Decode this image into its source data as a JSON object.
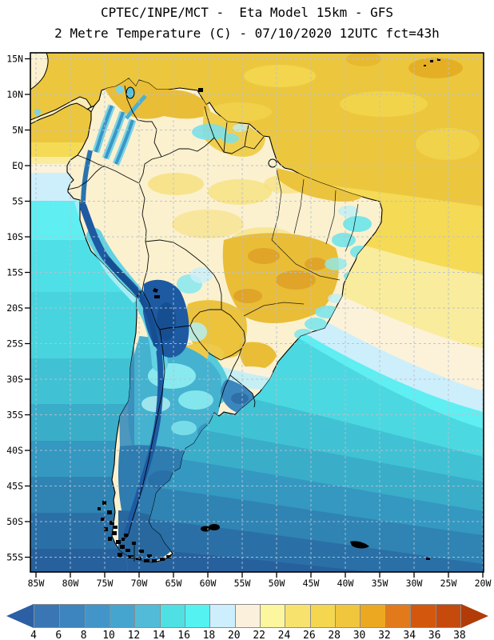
{
  "title": {
    "line1": "CPTEC/INPE/MCT -  Eta Model 15km - GFS",
    "line2": "2 Metre Temperature (C) - 07/10/2020 12UTC fct=43h"
  },
  "axes": {
    "lat_labels": [
      "15N",
      "10N",
      "5N",
      "EQ",
      "5S",
      "10S",
      "15S",
      "20S",
      "25S",
      "30S",
      "35S",
      "40S",
      "45S",
      "50S",
      "55S"
    ],
    "lon_labels": [
      "85W",
      "80W",
      "75W",
      "70W",
      "65W",
      "60W",
      "55W",
      "50W",
      "45W",
      "40W",
      "35W",
      "30W",
      "25W",
      "20W"
    ]
  },
  "colorbar": {
    "tick_labels": [
      "4",
      "6",
      "8",
      "10",
      "12",
      "14",
      "16",
      "18",
      "20",
      "22",
      "24",
      "26",
      "28",
      "30",
      "32",
      "34",
      "36",
      "38"
    ],
    "cell_colors": [
      "#3a76b4",
      "#3c85be",
      "#4295c8",
      "#46a5cf",
      "#52bcd8",
      "#4fe0e4",
      "#55f2f2",
      "#cdeefc",
      "#fbf0dc",
      "#fcf69e",
      "#f7e26e",
      "#f4d74f",
      "#f0c63d",
      "#eda821",
      "#e2791b",
      "#d3570d",
      "#c64a0b"
    ],
    "left_arrow_color": "#2d5fa4",
    "right_arrow_color": "#b13c08"
  },
  "map": {
    "palette": {
      "ocean_tropical_gold": "#ecc73e",
      "ocean_warm_yellow": "#f5da55",
      "ocean_pale_yellow": "#f9ec9c",
      "ocean_cream": "#fcf2da",
      "ocean_pale_cyan": "#cdeffb",
      "ocean_bright_cyan": "#5feef2",
      "ocean_turquoise": "#4cd8e0",
      "ocean_teal": "#40c2d4",
      "ocean_cool_blue": "#3498c1",
      "ocean_deep_blue": "#27619d",
      "land_cream": "#fbf1cf",
      "land_gold": "#eabd37",
      "land_teal": "#45b2d0",
      "land_patagonia_blue": "#2e7cb0",
      "andes_dark_blue": "#1d5aa2",
      "andes_core_blue": "#164e92",
      "grid_line": "#b9c0ce",
      "border_line": "#000000"
    }
  }
}
